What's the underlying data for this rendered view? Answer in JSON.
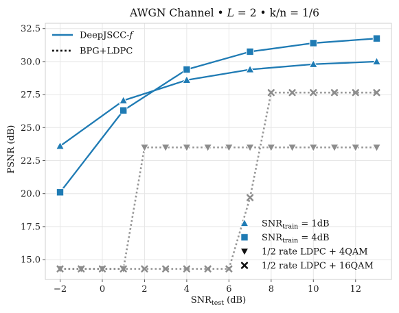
{
  "chart_data": {
    "type": "line",
    "title": "AWGN Channel • L = 2 •  k/n = 1/6",
    "title_parts": {
      "prefix": "AWGN Channel • ",
      "var": "L",
      "suffix": " = 2 •  k/n = 1/6"
    },
    "xlabel": {
      "base": "SNR",
      "sub": "test",
      "suffix": " (dB)"
    },
    "ylabel": "PSNR (dB)",
    "xlim": [
      -2.7,
      13.7
    ],
    "ylim": [
      13.5,
      32.9
    ],
    "xticks": [
      -2,
      0,
      2,
      4,
      6,
      8,
      10,
      12
    ],
    "yticks": [
      15.0,
      17.5,
      20.0,
      22.5,
      25.0,
      27.5,
      30.0,
      32.5
    ],
    "ytick_labels": [
      "15.0",
      "17.5",
      "20.0",
      "22.5",
      "25.0",
      "27.5",
      "30.0",
      "32.5"
    ],
    "grid": true,
    "series": [
      {
        "name": "SNRtrain = 1dB",
        "method": "DeepJSCC-f",
        "marker": "triangle-up",
        "color": "#1f7bb4",
        "style": "solid",
        "x": [
          -2,
          1,
          4,
          7,
          10,
          13
        ],
        "y": [
          23.6,
          27.05,
          28.6,
          29.4,
          29.8,
          30.0
        ]
      },
      {
        "name": "SNRtrain = 4dB",
        "method": "DeepJSCC-f",
        "marker": "square",
        "color": "#1f7bb4",
        "style": "solid",
        "x": [
          -2,
          1,
          4,
          7,
          10,
          13
        ],
        "y": [
          20.1,
          26.3,
          29.4,
          30.75,
          31.4,
          31.75
        ]
      },
      {
        "name": "1/2 rate LDPC + 4QAM",
        "method": "BPG+LDPC",
        "marker": "triangle-down",
        "color": "#8c8c8c",
        "style": "dotted",
        "x": [
          -2,
          -1,
          0,
          1,
          2,
          3,
          4,
          5,
          6,
          7,
          8,
          9,
          10,
          11,
          12,
          13
        ],
        "y": [
          14.3,
          14.3,
          14.3,
          14.3,
          23.5,
          23.5,
          23.5,
          23.5,
          23.5,
          23.5,
          23.5,
          23.5,
          23.5,
          23.5,
          23.5,
          23.5
        ]
      },
      {
        "name": "1/2 rate LDPC + 16QAM",
        "method": "BPG+LDPC",
        "marker": "x",
        "color": "#8c8c8c",
        "style": "dotted",
        "x": [
          -2,
          -1,
          0,
          1,
          2,
          3,
          4,
          5,
          6,
          7,
          8,
          9,
          10,
          11,
          12,
          13
        ],
        "y": [
          14.3,
          14.3,
          14.3,
          14.3,
          14.3,
          14.3,
          14.3,
          14.3,
          14.3,
          19.7,
          27.65,
          27.65,
          27.65,
          27.65,
          27.65,
          27.65
        ]
      }
    ],
    "legend_methods": {
      "position": "top-left",
      "entries": [
        {
          "label_base": "DeepJSCC-",
          "label_italic": "f",
          "style": "solid",
          "color": "#1f7bb4"
        },
        {
          "label_base": "BPG+LDPC",
          "label_italic": "",
          "style": "dotted",
          "color": "#111111"
        }
      ]
    },
    "legend_markers": {
      "position": "lower-right",
      "entries": [
        {
          "marker": "triangle-up",
          "color": "#1f7bb4",
          "base": "SNR",
          "sub": "train",
          "suffix": " = 1dB"
        },
        {
          "marker": "square",
          "color": "#1f7bb4",
          "base": "SNR",
          "sub": "train",
          "suffix": " = 4dB"
        },
        {
          "marker": "triangle-down",
          "color": "#111111",
          "base": "1/2 rate LDPC + 4QAM",
          "sub": "",
          "suffix": ""
        },
        {
          "marker": "x",
          "color": "#111111",
          "base": "1/2 rate LDPC + 16QAM",
          "sub": "",
          "suffix": ""
        }
      ]
    }
  }
}
